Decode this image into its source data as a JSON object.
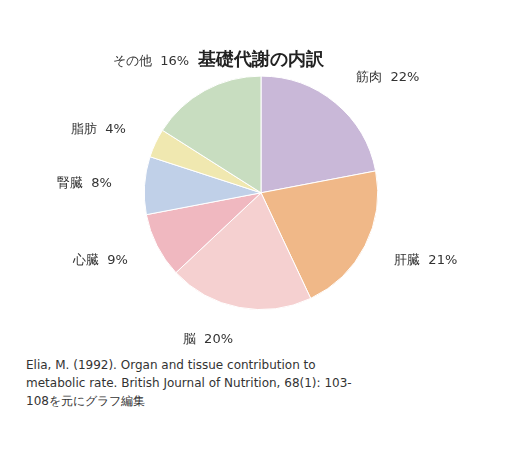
{
  "chart_data": {
    "type": "pie",
    "title": "基礎代謝の内訳",
    "categories": [
      "筋肉",
      "肝臓",
      "脳",
      "心臓",
      "腎臓",
      "脂肪",
      "その他"
    ],
    "values": [
      22,
      21,
      20,
      9,
      8,
      4,
      16
    ],
    "value_labels": [
      "22%",
      "21%",
      "20%",
      "9%",
      "8%",
      "4%",
      "16%"
    ],
    "data_labels": true,
    "colors": [
      "#c9b8d8",
      "#f0b888",
      "#f5d0d0",
      "#f0b8c0",
      "#c0d0e8",
      "#f0e8b0",
      "#c8ddc0"
    ],
    "annotations": [
      "Elia, M. (1992). Organ and tissue contribution to",
      "metabolic rate. British Journal of Nutrition, 68(1): 103-",
      "108を元にグラフ編集"
    ]
  }
}
